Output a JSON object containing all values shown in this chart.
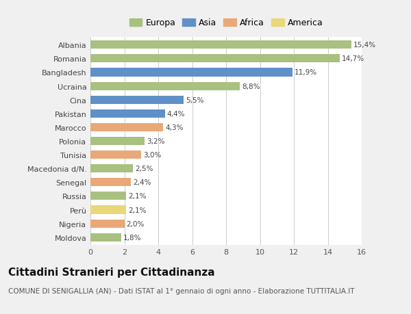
{
  "countries": [
    "Moldova",
    "Nigeria",
    "Perù",
    "Russia",
    "Senegal",
    "Macedonia d/N.",
    "Tunisia",
    "Polonia",
    "Marocco",
    "Pakistan",
    "Cina",
    "Ucraina",
    "Bangladesh",
    "Romania",
    "Albania"
  ],
  "values": [
    1.8,
    2.0,
    2.1,
    2.1,
    2.4,
    2.5,
    3.0,
    3.2,
    4.3,
    4.4,
    5.5,
    8.8,
    11.9,
    14.7,
    15.4
  ],
  "labels": [
    "1,8%",
    "2,0%",
    "2,1%",
    "2,1%",
    "2,4%",
    "2,5%",
    "3,0%",
    "3,2%",
    "4,3%",
    "4,4%",
    "5,5%",
    "8,8%",
    "11,9%",
    "14,7%",
    "15,4%"
  ],
  "colors": [
    "#a8c080",
    "#e8a878",
    "#e8d878",
    "#a8c080",
    "#e8a878",
    "#a8c080",
    "#e8a878",
    "#a8c080",
    "#e8a878",
    "#6090c8",
    "#6090c8",
    "#a8c080",
    "#6090c8",
    "#a8c080",
    "#a8c080"
  ],
  "legend_labels": [
    "Europa",
    "Asia",
    "Africa",
    "America"
  ],
  "legend_colors": [
    "#a8c080",
    "#6090c8",
    "#e8a878",
    "#e8d878"
  ],
  "title": "Cittadini Stranieri per Cittadinanza",
  "subtitle": "COMUNE DI SENIGALLIA (AN) - Dati ISTAT al 1° gennaio di ogni anno - Elaborazione TUTTITALIA.IT",
  "xlim": [
    0,
    16
  ],
  "xticks": [
    0,
    2,
    4,
    6,
    8,
    10,
    12,
    14,
    16
  ],
  "bg_color": "#f0f0f0",
  "plot_bg_color": "#ffffff",
  "grid_color": "#cccccc",
  "title_fontsize": 11,
  "subtitle_fontsize": 7.5,
  "label_fontsize": 7.5,
  "tick_fontsize": 8,
  "legend_fontsize": 9
}
